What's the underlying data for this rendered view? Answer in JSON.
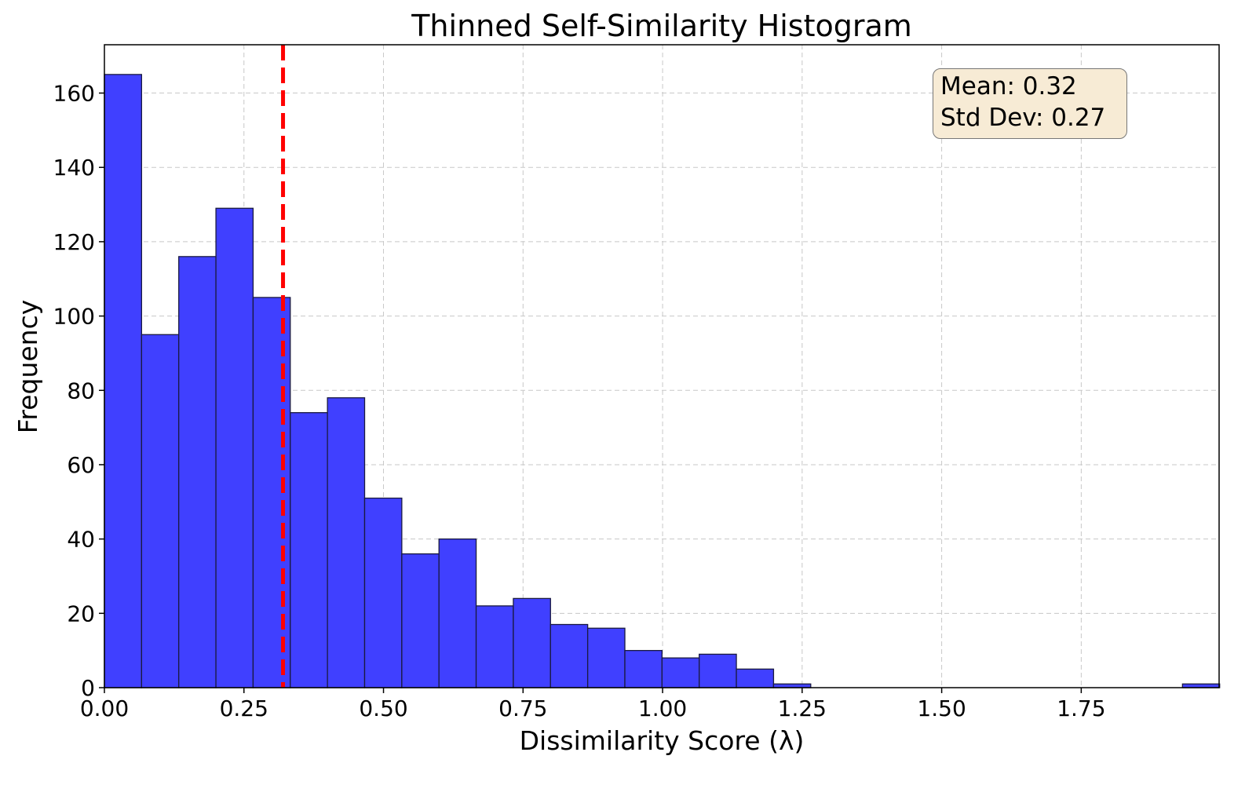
{
  "chart_data": {
    "type": "bar",
    "subtype": "histogram",
    "title": "Thinned Self-Similarity Histogram",
    "xlabel": "Dissimilarity Score (λ)",
    "ylabel": "Frequency",
    "xlim": [
      0.0,
      1.997
    ],
    "ylim": [
      0,
      173
    ],
    "bin_width": 0.0666,
    "bin_edges_start": 0.0,
    "values": [
      165,
      95,
      116,
      129,
      105,
      74,
      78,
      51,
      36,
      40,
      22,
      24,
      17,
      16,
      10,
      8,
      9,
      5,
      1,
      0,
      0,
      0,
      0,
      0,
      0,
      0,
      0,
      0,
      0,
      1
    ],
    "x_ticks": [
      0.0,
      0.25,
      0.5,
      0.75,
      1.0,
      1.25,
      1.5,
      1.75
    ],
    "x_tick_labels": [
      "0.00",
      "0.25",
      "0.50",
      "0.75",
      "1.00",
      "1.25",
      "1.50",
      "1.75"
    ],
    "y_ticks": [
      0,
      20,
      40,
      60,
      80,
      100,
      120,
      140,
      160
    ],
    "y_tick_labels": [
      "0",
      "20",
      "40",
      "60",
      "80",
      "100",
      "120",
      "140",
      "160"
    ],
    "grid": true,
    "bar_color": "#4040ff",
    "edge_color": "#1a1a40",
    "mean_line": {
      "x": 0.32,
      "color": "#ff0000",
      "style": "dashed"
    },
    "annotation": {
      "mean": "Mean: 0.32",
      "std": "Std Dev: 0.27"
    }
  }
}
